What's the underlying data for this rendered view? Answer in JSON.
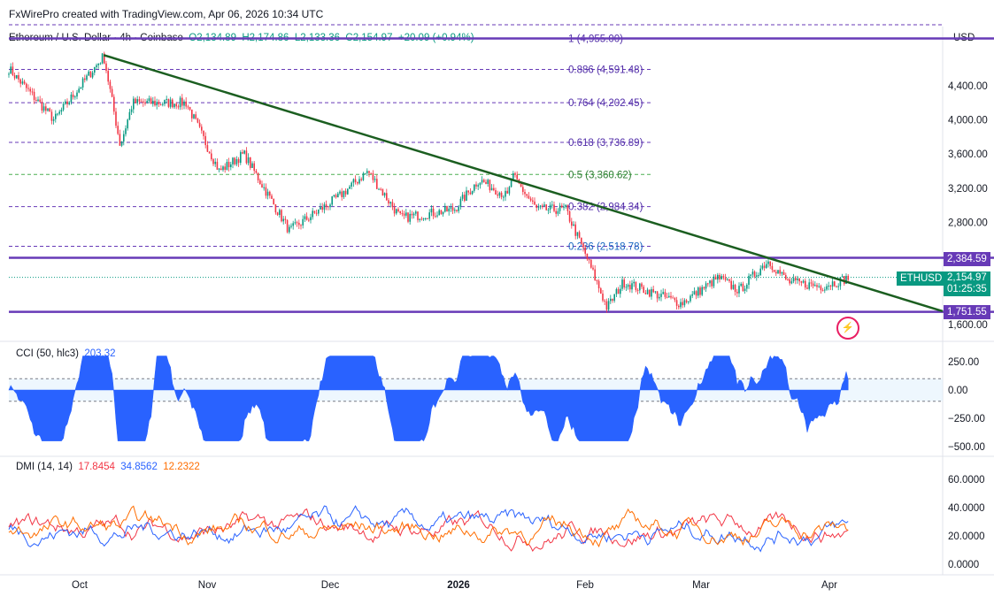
{
  "header": "FxWirePro created with TradingView.com, Apr 06, 2026 10:34 UTC",
  "legend": {
    "symbol": "Ethereum / U.S. Dollar · 4h · Coinbase",
    "o": "O2,134.89",
    "h": "H2,174.86",
    "l": "L2,133.36",
    "c": "C2,154.97",
    "chg": "+20.09 (+0.94%)"
  },
  "currency": "USD",
  "colors": {
    "up": "#089981",
    "down": "#f23645",
    "purple": "#673ab7",
    "trend": "#1b5e20",
    "cci": "#2962ff",
    "dmi_plus": "#2962ff",
    "dmi_minus": "#f23645",
    "adx": "#ff6d00"
  },
  "price_tags": {
    "resistance": "2,384.59",
    "symbol": "ETHUSD",
    "last": "2,154.97",
    "countdown": "01:25:35",
    "support": "1,751.55"
  },
  "cci_legend": {
    "name": "CCI (50, hlc3)",
    "value": "203.32"
  },
  "dmi_legend": {
    "name": "DMI (14, 14)",
    "minus": "17.8454",
    "plus": "34.8562",
    "adx": "12.2322"
  },
  "chart_data": {
    "type": "candlestick",
    "title": "Ethereum / U.S. Dollar · 4h · Coinbase",
    "price_ticks": [
      4400,
      4000,
      3600,
      3200,
      2800,
      1600
    ],
    "price_tick_labels": [
      "4,400.00",
      "4,000.00",
      "3,600.00",
      "3,200.00",
      "2,800.00",
      "1,600.00"
    ],
    "x_ticks": [
      "Oct",
      "Nov",
      "Dec",
      "2026",
      "Feb",
      "Mar",
      "Apr"
    ],
    "fib_levels": [
      {
        "label": "1 (4,955.00)",
        "value": 4955
      },
      {
        "label": "0.886 (4,591.48)",
        "value": 4591.48
      },
      {
        "label": "0.764 (4,202.45)",
        "value": 4202.45
      },
      {
        "label": "0.618 (3,736.89)",
        "value": 3736.89
      },
      {
        "label": "0.5 (3,360.62)",
        "value": 3360.62
      },
      {
        "label": "0.382 (2,984.34)",
        "value": 2984.34
      },
      {
        "label": "0.236 (2,518.78)",
        "value": 2518.78
      }
    ],
    "horizontal_lines": [
      4955,
      2384.59,
      1751.55
    ],
    "trendline": {
      "from": [
        "2025-10-07",
        4760
      ],
      "to": [
        "2026-04-10",
        1800
      ]
    },
    "close_path": {
      "dates": [
        "09-14",
        "09-25",
        "10-07",
        "10-11",
        "10-14",
        "10-27",
        "11-04",
        "11-10",
        "11-21",
        "12-03",
        "12-10",
        "12-18",
        "12-31",
        "01-06",
        "01-13",
        "01-14",
        "01-20",
        "01-27",
        "02-01",
        "02-06",
        "02-10",
        "02-24",
        "03-05",
        "03-10",
        "03-17",
        "03-22",
        "03-30",
        "04-06"
      ],
      "closes": [
        4600,
        4000,
        4750,
        3700,
        4200,
        4200,
        3400,
        3600,
        2700,
        3100,
        3400,
        2850,
        2950,
        3300,
        3100,
        3350,
        2950,
        2950,
        2400,
        1800,
        2100,
        1850,
        2150,
        2000,
        2350,
        2100,
        2050,
        2155
      ]
    },
    "cci_ticks": [
      "250.00",
      "0.00",
      "−250.00",
      "−500.00"
    ],
    "dmi_ticks": [
      "60.0000",
      "40.0000",
      "20.0000",
      "0.0000"
    ]
  }
}
